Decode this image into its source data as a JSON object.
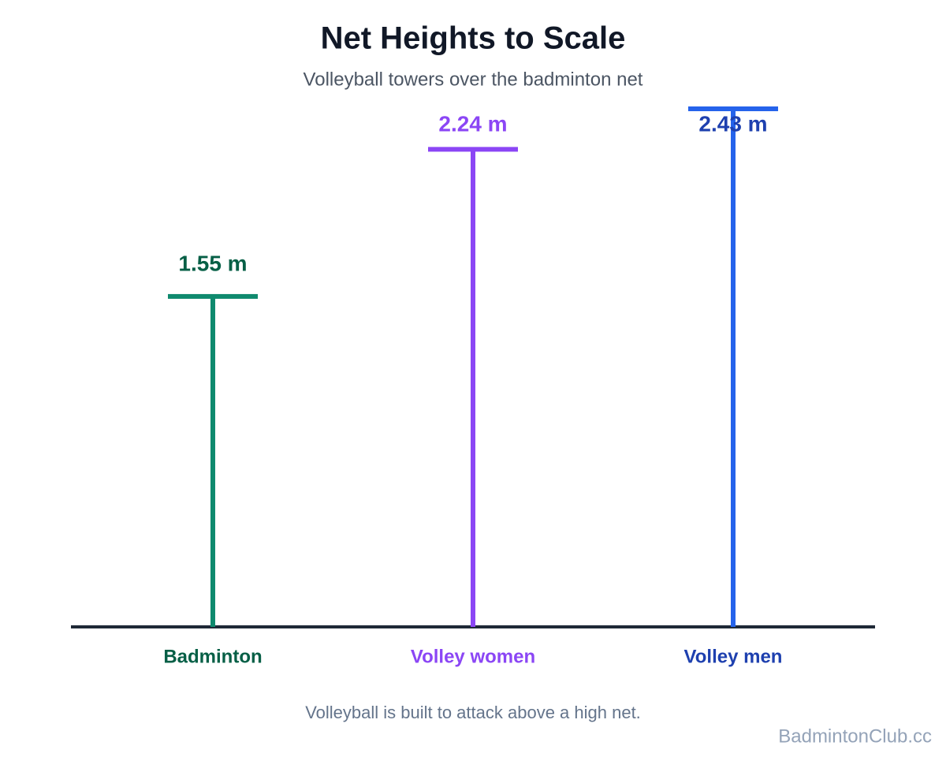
{
  "chart_data": {
    "type": "net",
    "title": "Net Heights to Scale",
    "subtitle": "Volleyball towers over the badminton net",
    "categories": [
      "Badminton",
      "Volley women",
      "Volley men"
    ],
    "values": [
      1.55,
      2.24,
      2.43
    ],
    "value_labels": [
      "1.55 m",
      "2.24 m",
      "2.43 m"
    ],
    "colors": [
      "#0f8a6e",
      "#8b46f5",
      "#2563eb"
    ],
    "label_colors": [
      "#065f46",
      "#8b46f5",
      "#1e40af"
    ],
    "ylim": [
      0,
      2.43
    ],
    "caption": "Volleyball is built to attack above a high net."
  },
  "watermark": "BadmintonClub.cc"
}
